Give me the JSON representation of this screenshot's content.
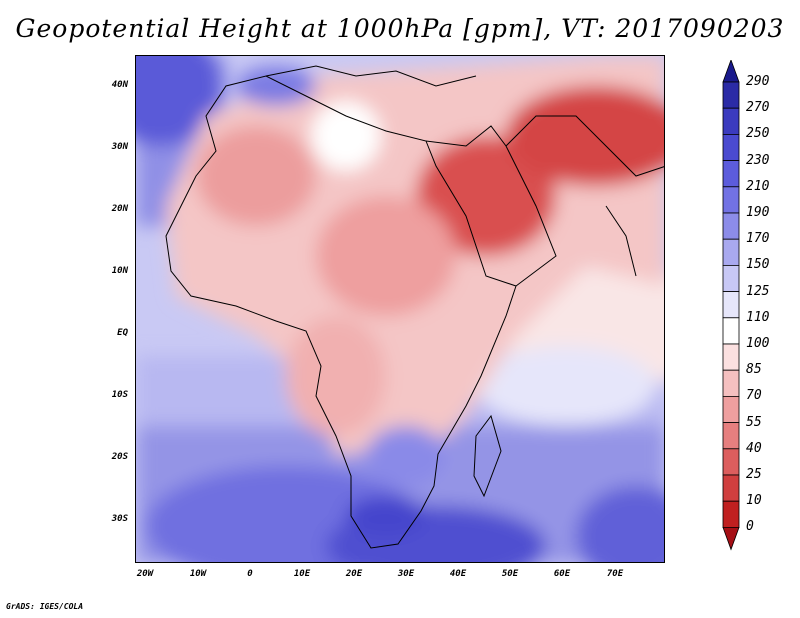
{
  "title": "Geopotential Height at 1000hPa [gpm], VT: 2017090203",
  "credit": "GrADS: IGES/COLA",
  "map": {
    "lat_labels": [
      "40N",
      "30N",
      "20N",
      "10N",
      "EQ",
      "10S",
      "20S",
      "30S"
    ],
    "lon_labels": [
      "20W",
      "10W",
      "0",
      "10E",
      "20E",
      "30E",
      "40E",
      "50E",
      "60E",
      "70E"
    ]
  },
  "colorbar": {
    "labels": [
      "290",
      "270",
      "250",
      "230",
      "210",
      "190",
      "170",
      "150",
      "125",
      "110",
      "100",
      "85",
      "70",
      "55",
      "40",
      "25",
      "10",
      "0"
    ],
    "colors": [
      "#1a1a8c",
      "#2b2ba6",
      "#3b3bbf",
      "#4a4ad0",
      "#5c5cdc",
      "#7272e4",
      "#8c8ce9",
      "#a9a9ef",
      "#c8c8f5",
      "#e6e6fa",
      "#ffffff",
      "#fbe0e0",
      "#f5c0c0",
      "#ee9f9f",
      "#e67f7f",
      "#dc5e5e",
      "#d03f3f",
      "#c02020",
      "#a50f15"
    ]
  }
}
